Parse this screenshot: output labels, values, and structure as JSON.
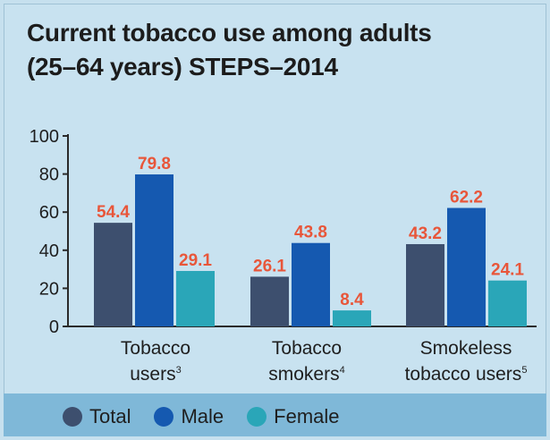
{
  "chart_data": {
    "type": "bar",
    "title_line1": "Current tobacco use among adults",
    "title_line2": "(25–64 years) STEPS–2014",
    "categories": [
      {
        "line1": "Tobacco",
        "line2": "users",
        "sup": "3"
      },
      {
        "line1": "Tobacco",
        "line2": "smokers",
        "sup": "4"
      },
      {
        "line1": "Smokeless",
        "line2": "tobacco users",
        "sup": "5"
      }
    ],
    "series": [
      {
        "name": "Total",
        "color": "#3d4f6e",
        "values": [
          54.4,
          26.1,
          43.2
        ],
        "labels": [
          "54.4",
          "26.1",
          "43.2"
        ]
      },
      {
        "name": "Male",
        "color": "#1559b0",
        "values": [
          79.8,
          43.8,
          62.2
        ],
        "labels": [
          "79.8",
          "43.8",
          "62.2"
        ]
      },
      {
        "name": "Female",
        "color": "#2aa6b8",
        "values": [
          29.1,
          8.4,
          24.1
        ],
        "labels": [
          "29.1",
          "8.4",
          "24.1"
        ]
      }
    ],
    "yticks": [
      "0",
      "20",
      "40",
      "60",
      "80",
      "100"
    ],
    "ylim": [
      0,
      100
    ],
    "label_color": "#e8563a",
    "legend_position": "bottom",
    "grid": false
  }
}
